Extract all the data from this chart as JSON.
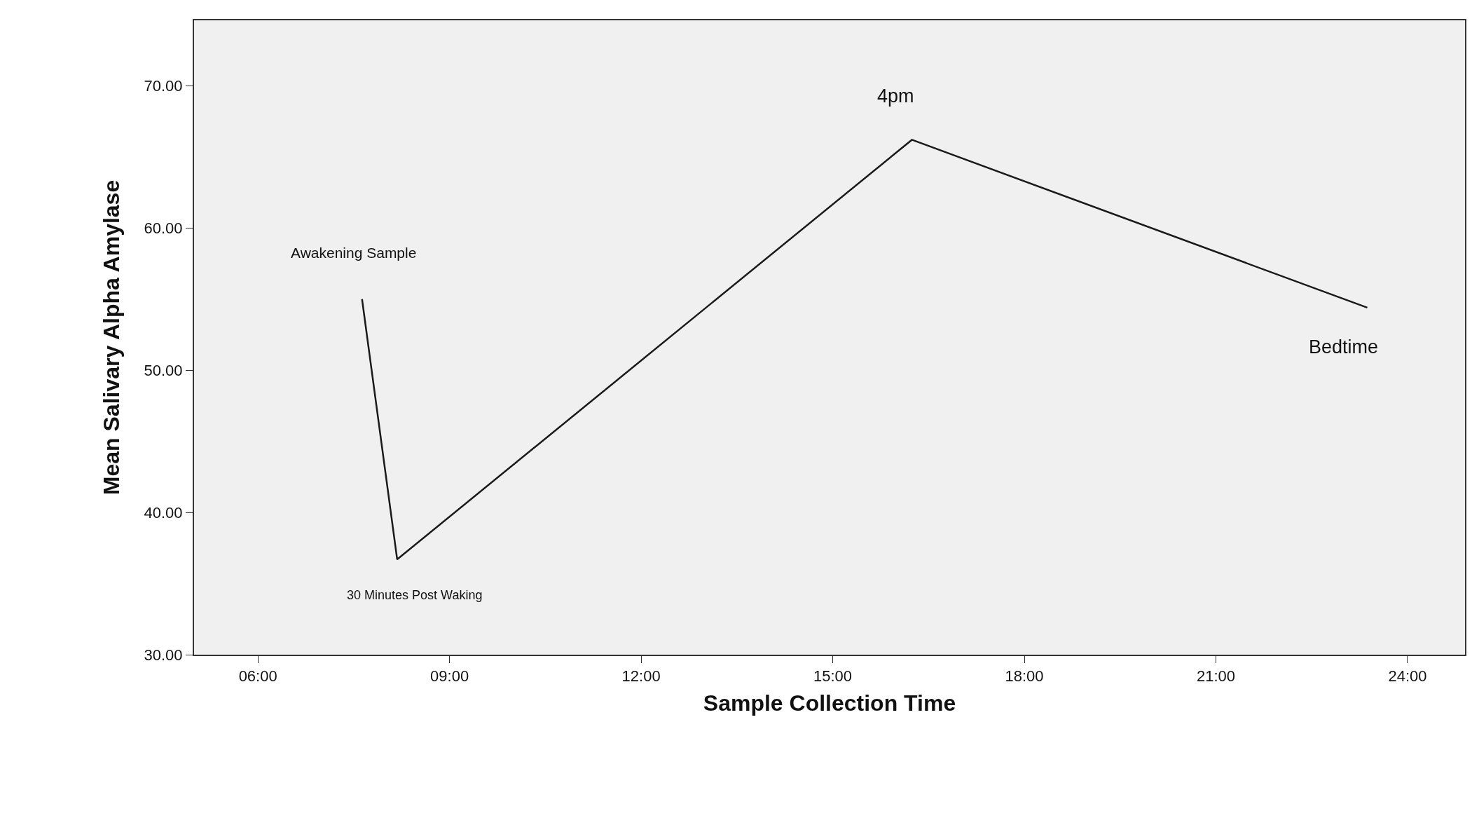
{
  "chart_data": {
    "type": "line",
    "xlabel": "Sample Collection Time",
    "ylabel": "Mean Salivary Alpha Amylase",
    "x": [
      7.63,
      8.18,
      16.24,
      23.37
    ],
    "series": [
      {
        "color": "#1a1a1a",
        "values": [
          55.0,
          36.7,
          66.2,
          54.4
        ]
      }
    ],
    "xlim": [
      5.0,
      24.9
    ],
    "xticks": [
      {
        "value": 6,
        "label": "06:00"
      },
      {
        "value": 9,
        "label": "09:00"
      },
      {
        "value": 12,
        "label": "12:00"
      },
      {
        "value": 15,
        "label": "15:00"
      },
      {
        "value": 18,
        "label": "18:00"
      },
      {
        "value": 21,
        "label": "21:00"
      },
      {
        "value": 24,
        "label": "24:00"
      }
    ],
    "ylim": [
      30,
      74.6
    ],
    "yticks": [
      {
        "value": 30,
        "label": "30.00"
      },
      {
        "value": 40,
        "label": "40.00"
      },
      {
        "value": 50,
        "label": "50.00"
      },
      {
        "value": 60,
        "label": "60.00"
      },
      {
        "value": 70,
        "label": "70.00"
      }
    ],
    "annotations": [
      {
        "text": "Awakening Sample",
        "x": 7.63,
        "y": 55.0
      },
      {
        "text": "30 Minutes Post Waking",
        "x": 8.18,
        "y": 36.7
      },
      {
        "text": "4pm",
        "x": 16.24,
        "y": 66.2
      },
      {
        "text": "Bedtime",
        "x": 23.37,
        "y": 54.4
      }
    ],
    "grid": false,
    "marker": "none",
    "line_style": "solid"
  }
}
